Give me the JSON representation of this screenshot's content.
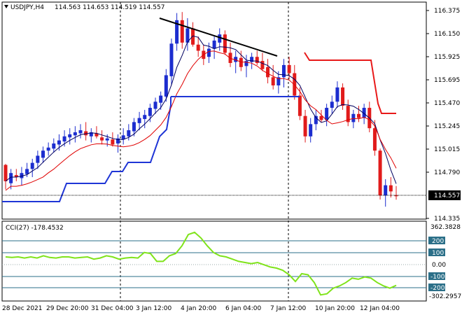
{
  "header": {
    "symbol_line": "USDJPY,H4",
    "ohlc": "114.563 114.653 114.519 114.557"
  },
  "price_axis": {
    "ticks": [
      "116.375",
      "116.150",
      "115.925",
      "115.695",
      "115.470",
      "115.245",
      "115.015",
      "114.790",
      "114.335"
    ],
    "current_price": "114.557"
  },
  "cci": {
    "label": "CCI(27) -178.4532",
    "axis_ticks": [
      "362.3828",
      "200",
      "100",
      "0.00",
      "-100",
      "-200",
      "-302.2957"
    ],
    "level_lines": [
      "200",
      "100",
      "-100",
      "-200"
    ]
  },
  "time_axis": {
    "labels": [
      "28 Dec 2021",
      "29 Dec 20:00",
      "31 Dec 04:00",
      "3 Jan 12:00",
      "4 Jan 20:00",
      "6 Jan 04:00",
      "7 Jan 12:00",
      "10 Jan 20:00",
      "12 Jan 04:00"
    ]
  },
  "colors": {
    "background": "#ffffff",
    "bull_candle": "#1c2dcf",
    "bear_candle": "#e11b1b",
    "ma_fast": "#e00000",
    "ma_slow": "#000060",
    "trailing_stop_blue": "#1f35d6",
    "trailing_stop_red": "#e81919",
    "cci_line": "#7fe31a",
    "cci_level": "#2b6f88",
    "current_price_tag": "#000000"
  },
  "chart_data": {
    "type": "candlestick",
    "title": "USDJPY,H4",
    "ylim": [
      114.33,
      116.45
    ],
    "candles": [
      [
        114.86,
        114.87,
        114.62,
        114.7
      ],
      [
        114.68,
        114.82,
        114.62,
        114.78
      ],
      [
        114.76,
        114.82,
        114.7,
        114.74
      ],
      [
        114.73,
        114.84,
        114.66,
        114.78
      ],
      [
        114.77,
        114.88,
        114.74,
        114.82
      ],
      [
        114.82,
        114.92,
        114.74,
        114.88
      ],
      [
        114.88,
        115.0,
        114.82,
        114.95
      ],
      [
        114.93,
        115.04,
        114.88,
        115.0
      ],
      [
        115.0,
        115.08,
        114.95,
        115.03
      ],
      [
        115.02,
        115.12,
        114.98,
        115.07
      ],
      [
        115.06,
        115.16,
        115.0,
        115.1
      ],
      [
        115.09,
        115.2,
        115.04,
        115.14
      ],
      [
        115.13,
        115.22,
        115.06,
        115.16
      ],
      [
        115.15,
        115.24,
        115.08,
        115.18
      ],
      [
        115.17,
        115.26,
        115.12,
        115.2
      ],
      [
        115.19,
        115.28,
        115.1,
        115.15
      ],
      [
        115.14,
        115.22,
        115.08,
        115.18
      ],
      [
        115.17,
        115.24,
        115.12,
        115.14
      ],
      [
        115.13,
        115.2,
        115.06,
        115.1
      ],
      [
        115.1,
        115.16,
        115.04,
        115.12
      ],
      [
        115.11,
        115.18,
        115.04,
        115.06
      ],
      [
        115.07,
        115.16,
        114.98,
        115.12
      ],
      [
        115.11,
        115.22,
        115.06,
        115.15
      ],
      [
        115.14,
        115.26,
        115.1,
        115.2
      ],
      [
        115.19,
        115.32,
        115.14,
        115.28
      ],
      [
        115.27,
        115.38,
        115.2,
        115.32
      ],
      [
        115.31,
        115.4,
        115.22,
        115.35
      ],
      [
        115.34,
        115.46,
        115.28,
        115.42
      ],
      [
        115.41,
        115.52,
        115.36,
        115.48
      ],
      [
        115.47,
        115.58,
        115.4,
        115.54
      ],
      [
        115.53,
        115.8,
        115.48,
        115.74
      ],
      [
        115.73,
        116.1,
        115.64,
        116.05
      ],
      [
        116.05,
        116.35,
        115.98,
        116.28
      ],
      [
        116.28,
        116.36,
        116.0,
        116.06
      ],
      [
        116.06,
        116.3,
        115.98,
        116.2
      ],
      [
        116.2,
        116.26,
        116.02,
        116.04
      ],
      [
        116.04,
        116.12,
        115.92,
        115.98
      ],
      [
        115.98,
        116.04,
        115.84,
        115.9
      ],
      [
        115.92,
        116.06,
        115.86,
        116.0
      ],
      [
        116.0,
        116.12,
        115.9,
        116.08
      ],
      [
        116.06,
        116.2,
        115.98,
        116.14
      ],
      [
        116.14,
        116.18,
        115.94,
        115.96
      ],
      [
        115.96,
        116.06,
        115.82,
        115.86
      ],
      [
        115.87,
        115.98,
        115.76,
        115.92
      ],
      [
        115.91,
        115.98,
        115.78,
        115.82
      ],
      [
        115.83,
        115.94,
        115.72,
        115.88
      ],
      [
        115.87,
        115.96,
        115.8,
        115.92
      ],
      [
        115.92,
        115.98,
        115.84,
        115.86
      ],
      [
        115.88,
        115.96,
        115.78,
        115.8
      ],
      [
        115.82,
        115.9,
        115.66,
        115.72
      ],
      [
        115.72,
        115.84,
        115.6,
        115.64
      ],
      [
        115.64,
        115.78,
        115.56,
        115.72
      ],
      [
        115.72,
        115.9,
        115.62,
        115.84
      ],
      [
        115.84,
        115.92,
        115.7,
        115.76
      ],
      [
        115.76,
        115.84,
        115.5,
        115.54
      ],
      [
        115.54,
        115.62,
        115.3,
        115.34
      ],
      [
        115.34,
        115.4,
        115.08,
        115.14
      ],
      [
        115.14,
        115.32,
        115.08,
        115.26
      ],
      [
        115.26,
        115.4,
        115.2,
        115.34
      ],
      [
        115.34,
        115.4,
        115.28,
        115.3
      ],
      [
        115.3,
        115.46,
        115.24,
        115.42
      ],
      [
        115.42,
        115.54,
        115.36,
        115.48
      ],
      [
        115.48,
        115.68,
        115.42,
        115.62
      ],
      [
        115.62,
        115.66,
        115.4,
        115.44
      ],
      [
        115.44,
        115.5,
        115.24,
        115.28
      ],
      [
        115.28,
        115.4,
        115.22,
        115.36
      ],
      [
        115.36,
        115.44,
        115.28,
        115.32
      ],
      [
        115.32,
        115.46,
        115.26,
        115.42
      ],
      [
        115.42,
        115.48,
        115.18,
        115.22
      ],
      [
        115.22,
        115.3,
        114.95,
        115.0
      ],
      [
        115.0,
        115.02,
        114.52,
        114.56
      ],
      [
        114.56,
        114.72,
        114.45,
        114.66
      ],
      [
        114.66,
        114.74,
        114.54,
        114.6
      ],
      [
        114.563,
        114.653,
        114.519,
        114.557
      ]
    ]
  }
}
